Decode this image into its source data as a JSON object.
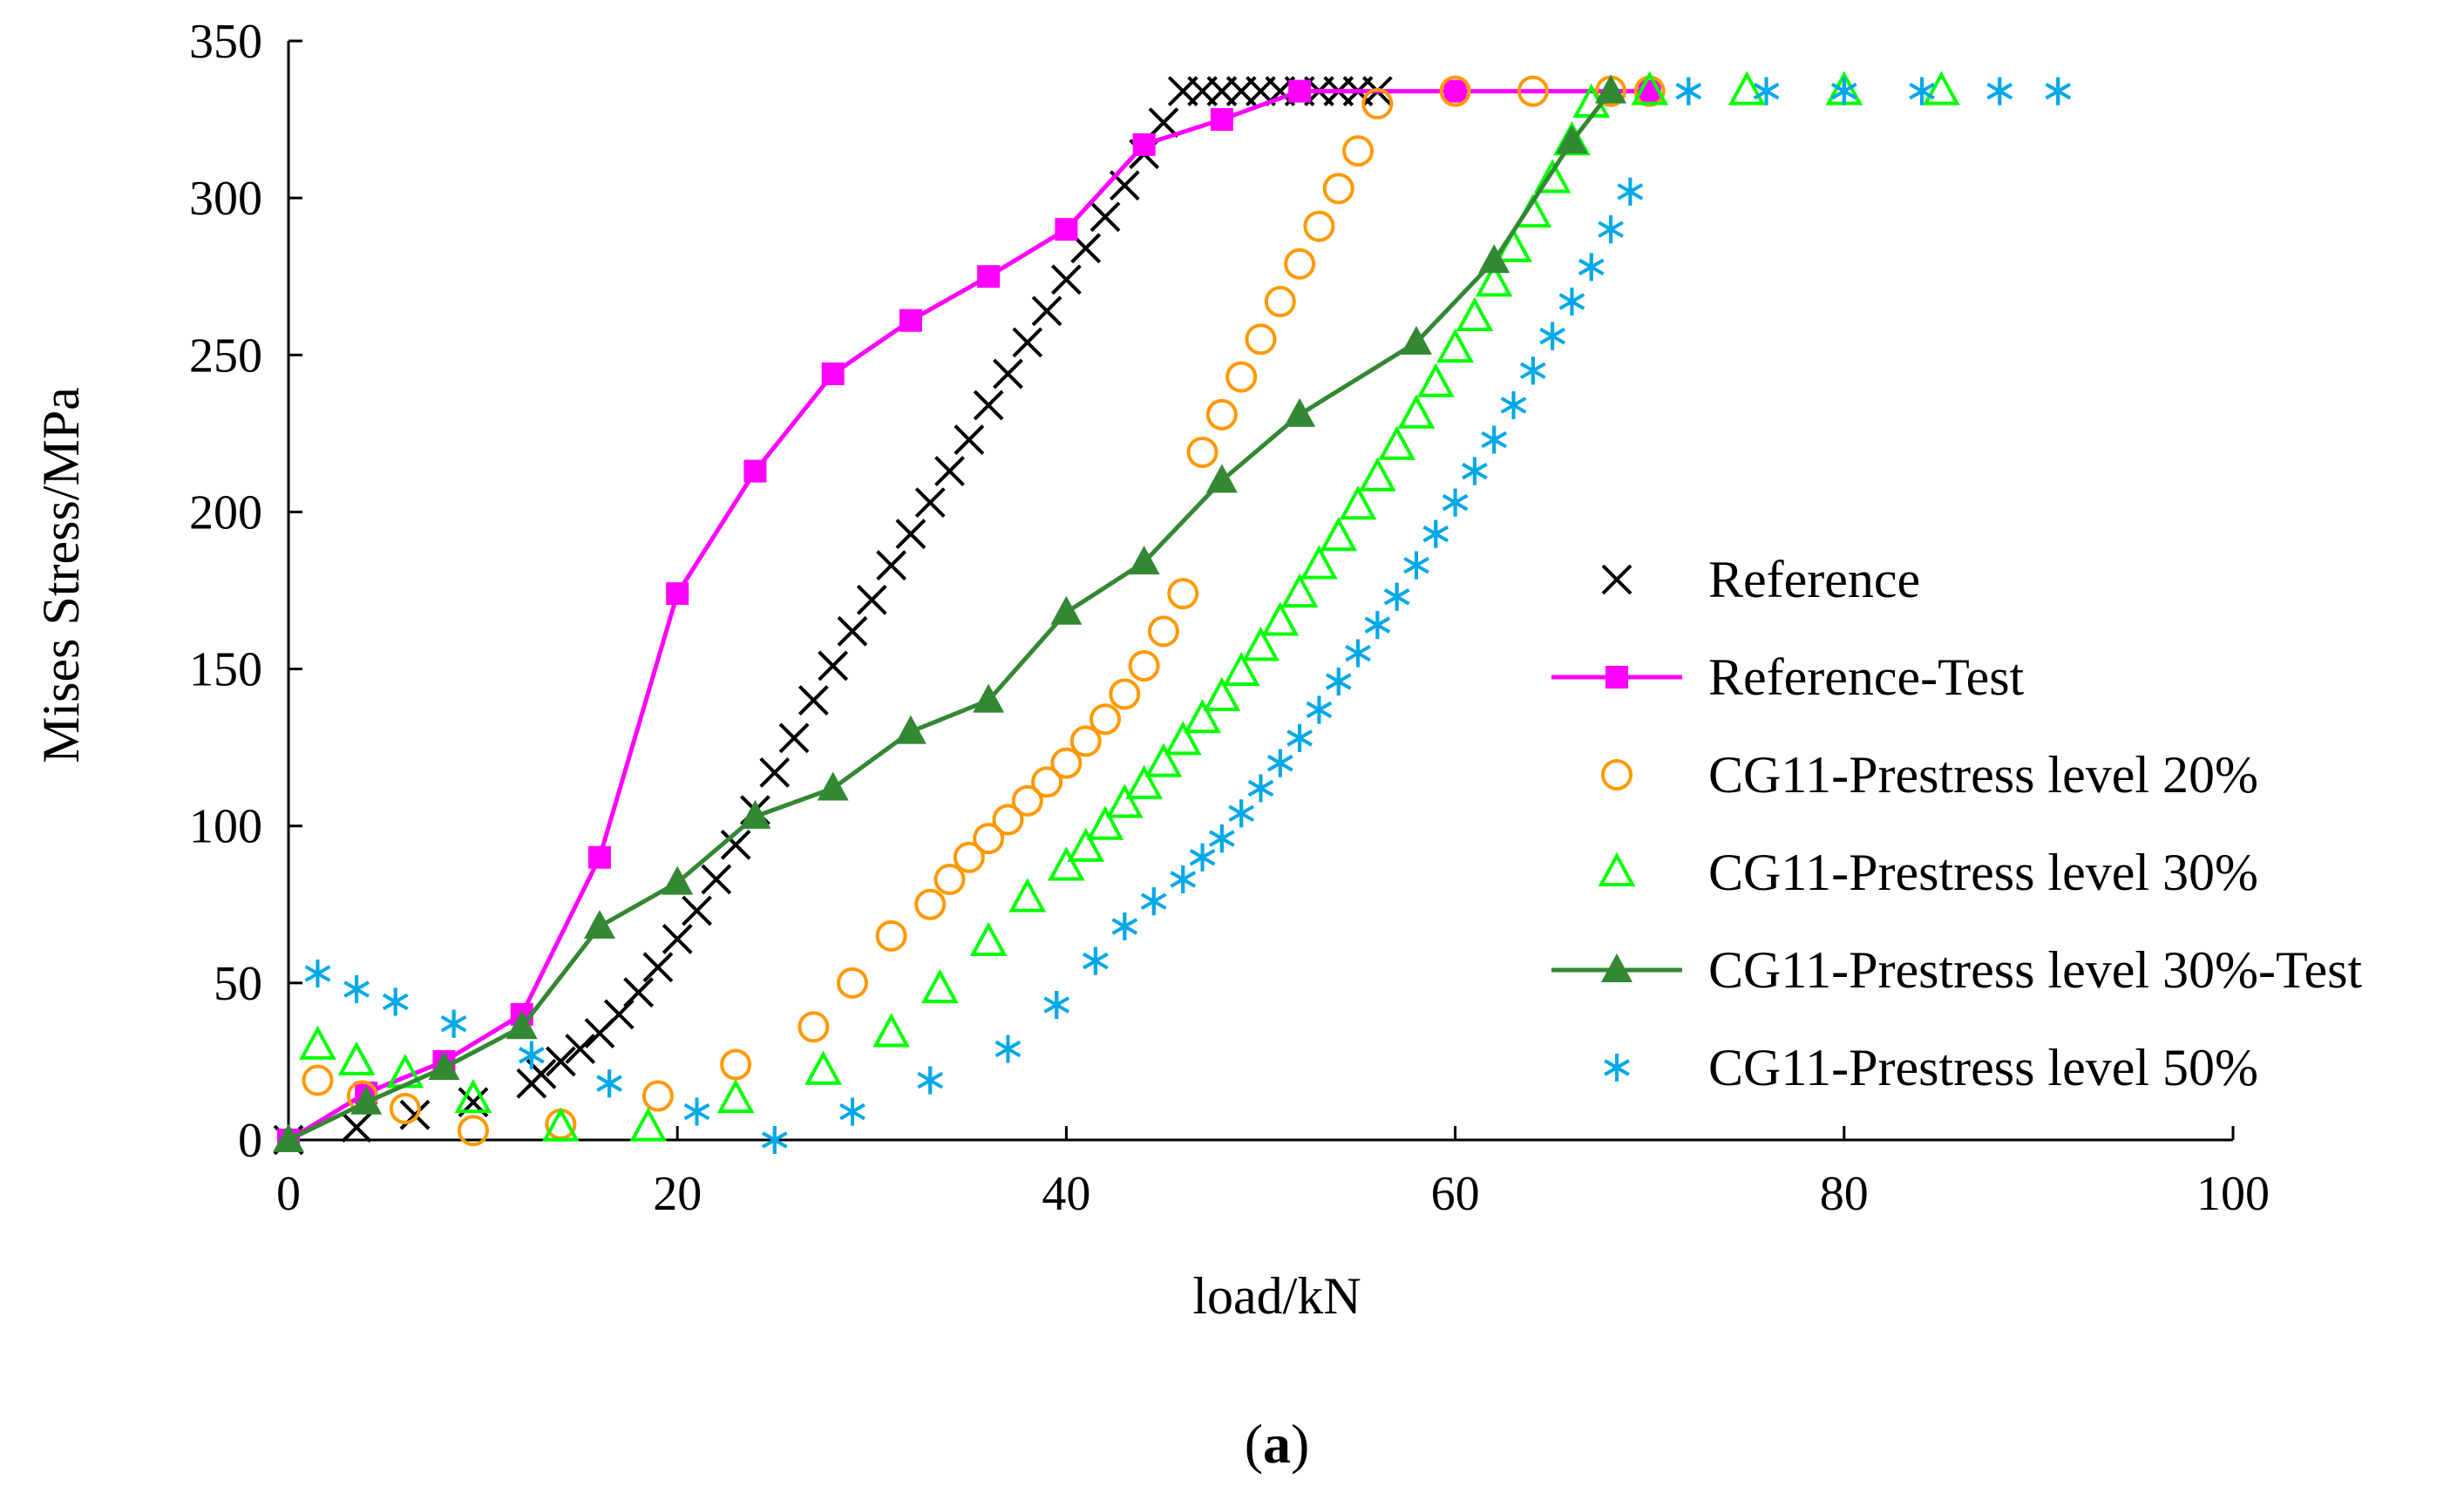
{
  "chart_data": {
    "type": "scatter",
    "title": "",
    "xlabel": "load/kN",
    "ylabel": "Mises Stress/MPa",
    "xlim": [
      0,
      100
    ],
    "ylim": [
      0,
      350
    ],
    "xticks": [
      "0",
      "20",
      "40",
      "60",
      "80",
      "100"
    ],
    "yticks": [
      "0",
      "50",
      "100",
      "150",
      "200",
      "250",
      "300",
      "350"
    ],
    "legend_position": "right",
    "panel_label_open": "(",
    "panel_label_letter": "a",
    "panel_label_close": ")",
    "series": [
      {
        "name": "Reference",
        "marker": "x",
        "line": false,
        "color": "#000000",
        "x": [
          0,
          3.5,
          6.5,
          9.5,
          12.5,
          13,
          14,
          15,
          16,
          17,
          18,
          19,
          20,
          21,
          22,
          23,
          24,
          25,
          26,
          27,
          28,
          29,
          30,
          31,
          32,
          33,
          34,
          35,
          36,
          37,
          38,
          39,
          40,
          41,
          42,
          43,
          44,
          45,
          46,
          47,
          48,
          49,
          50,
          51,
          52,
          53,
          54,
          55,
          56
        ],
        "y": [
          0,
          4,
          8,
          12,
          18,
          21,
          25,
          29,
          34,
          40,
          47,
          55,
          64,
          73,
          83,
          94,
          105,
          117,
          128,
          140,
          151,
          162,
          172,
          183,
          193,
          203,
          213,
          223,
          234,
          244,
          254,
          264,
          274,
          284,
          294,
          304,
          314,
          324,
          334,
          334,
          334,
          334,
          334,
          334,
          334,
          334,
          334,
          334,
          334
        ]
      },
      {
        "name": "Reference-Test",
        "marker": "square",
        "line": true,
        "color": "#ff00ff",
        "x": [
          0,
          4,
          8,
          12,
          16,
          20,
          24,
          28,
          32,
          36,
          40,
          44,
          48,
          52,
          60,
          70
        ],
        "y": [
          0,
          15,
          25,
          40,
          90,
          174,
          213,
          244,
          261,
          275,
          290,
          317,
          325,
          334,
          334,
          334
        ]
      },
      {
        "name": "CG11-Prestress level 20%",
        "marker": "circle",
        "line": false,
        "color": "#ff9900",
        "x": [
          1.5,
          3.8,
          6,
          9.5,
          14,
          19,
          23,
          27,
          29,
          31,
          33,
          34,
          35,
          36,
          37,
          38,
          39,
          40,
          41,
          42,
          43,
          44,
          45,
          46,
          47,
          48,
          49,
          50,
          51,
          52,
          53,
          54,
          55,
          56,
          60,
          64,
          68,
          70
        ],
        "y": [
          19,
          14,
          10,
          3,
          5,
          14,
          24,
          36,
          50,
          65,
          75,
          83,
          90,
          96,
          102,
          108,
          114,
          120,
          127,
          134,
          142,
          151,
          162,
          174,
          219,
          231,
          243,
          255,
          267,
          279,
          291,
          303,
          315,
          330,
          334,
          334,
          334,
          334
        ]
      },
      {
        "name": "CG11-Prestress level 30%",
        "marker": "triangle-open",
        "line": false,
        "color": "#00ff00",
        "x": [
          1.5,
          3.5,
          6,
          9.5,
          14,
          18.5,
          23,
          27.5,
          31,
          33.5,
          36,
          38,
          40,
          41,
          42,
          43,
          44,
          45,
          46,
          47,
          48,
          49,
          50,
          51,
          52,
          53,
          54,
          55,
          56,
          57,
          58,
          59,
          60,
          61,
          62,
          63,
          64,
          65,
          66,
          67,
          70,
          75,
          80,
          85
        ],
        "y": [
          30,
          25,
          21,
          13,
          4,
          4,
          13,
          22,
          34,
          48,
          63,
          77,
          87,
          93,
          100,
          107,
          113,
          120,
          127,
          134,
          141,
          149,
          157,
          165,
          174,
          183,
          192,
          202,
          211,
          221,
          231,
          241,
          252,
          262,
          273,
          284,
          295,
          306,
          318,
          330,
          334,
          334,
          334,
          334
        ]
      },
      {
        "name": "CG11-Prestress level 30%-Test",
        "marker": "triangle",
        "line": true,
        "color": "#338833",
        "x": [
          0,
          4,
          8,
          12,
          16,
          20,
          24,
          28,
          32,
          36,
          40,
          44,
          48,
          52,
          58,
          62,
          66,
          68
        ],
        "y": [
          0,
          12,
          23,
          36,
          68,
          82,
          103,
          112,
          130,
          140,
          168,
          184,
          210,
          231,
          254,
          280,
          318,
          334
        ]
      },
      {
        "name": "CG11-Prestress level 50%",
        "marker": "asterisk",
        "line": false,
        "color": "#00a8e8",
        "x": [
          1.5,
          3.5,
          5.5,
          8.5,
          12.5,
          16.5,
          21,
          25,
          29,
          33,
          37,
          39.5,
          41.5,
          43,
          44.5,
          46,
          47,
          48,
          49,
          50,
          51,
          52,
          53,
          54,
          55,
          56,
          57,
          58,
          59,
          60,
          61,
          62,
          63,
          64,
          65,
          66,
          67,
          68,
          69,
          72,
          76,
          80,
          84,
          88,
          91
        ],
        "y": [
          53,
          48,
          44,
          37,
          27,
          18,
          9,
          0,
          9,
          19,
          29,
          43,
          57,
          68,
          76,
          83,
          90,
          96,
          104,
          112,
          120,
          128,
          137,
          146,
          155,
          164,
          173,
          183,
          193,
          203,
          213,
          223,
          234,
          245,
          256,
          267,
          278,
          290,
          302,
          334,
          334,
          334,
          334,
          334,
          334
        ]
      }
    ]
  }
}
